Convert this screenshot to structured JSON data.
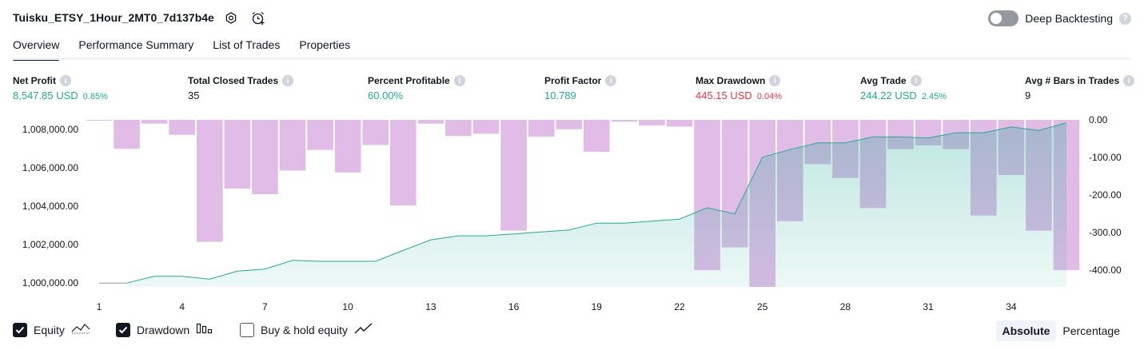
{
  "header": {
    "title": "Tuisku_ETSY_1Hour_2MT0_7d137b4e",
    "settings_icon": "gear-icon",
    "alert_icon": "alarm-add-icon",
    "deep_backtesting_label": "Deep Backtesting",
    "deep_backtesting_on": false,
    "help_glyph": "?"
  },
  "tabs": [
    {
      "label": "Overview",
      "active": true
    },
    {
      "label": "Performance Summary",
      "active": false
    },
    {
      "label": "List of Trades",
      "active": false
    },
    {
      "label": "Properties",
      "active": false
    }
  ],
  "stats": [
    {
      "label": "Net Profit",
      "value": "8,547.85 USD",
      "pct": "0.85%",
      "color": "green"
    },
    {
      "label": "Total Closed Trades",
      "value": "35",
      "pct": "",
      "color": "dark"
    },
    {
      "label": "Percent Profitable",
      "value": "60.00%",
      "pct": "",
      "color": "green"
    },
    {
      "label": "Profit Factor",
      "value": "10.789",
      "pct": "",
      "color": "green"
    },
    {
      "label": "Max Drawdown",
      "value": "445.15 USD",
      "pct": "0.04%",
      "color": "red"
    },
    {
      "label": "Avg Trade",
      "value": "244.22 USD",
      "pct": "2.45%",
      "color": "green"
    },
    {
      "label": "Avg # Bars in Trades",
      "value": "9",
      "pct": "",
      "color": "dark"
    }
  ],
  "info_glyph": "i",
  "chart_data": {
    "type": "line+bar",
    "x": [
      1,
      2,
      3,
      4,
      5,
      6,
      7,
      8,
      9,
      10,
      11,
      12,
      13,
      14,
      15,
      16,
      17,
      18,
      19,
      20,
      21,
      22,
      23,
      24,
      25,
      26,
      27,
      28,
      29,
      30,
      31,
      32,
      33,
      34,
      35,
      36
    ],
    "xticks": [
      "1",
      "4",
      "7",
      "10",
      "13",
      "16",
      "19",
      "22",
      "25",
      "28",
      "31",
      "34"
    ],
    "left_axis": {
      "ticks": [
        "1,000,000.00",
        "1,002,000.00",
        "1,004,000.00",
        "1,006,000.00",
        "1,008,000.00"
      ],
      "range": [
        999800,
        1008500
      ]
    },
    "right_axis": {
      "ticks": [
        "0.00",
        "-100.00",
        "-200.00",
        "-300.00",
        "-400.00"
      ],
      "range": [
        -445,
        0
      ]
    },
    "series": [
      {
        "name": "Equity",
        "axis": "left",
        "color": "#22ab94",
        "values": [
          1000000,
          1000000,
          1000350,
          1000350,
          1000200,
          1000620,
          1000730,
          1001180,
          1001130,
          1001130,
          1001130,
          1001700,
          1002250,
          1002460,
          1002460,
          1002560,
          1002660,
          1002760,
          1003120,
          1003120,
          1003220,
          1003330,
          1003920,
          1003600,
          1006550,
          1006950,
          1007300,
          1007300,
          1007610,
          1007610,
          1007560,
          1007830,
          1007830,
          1008130,
          1007950,
          1008350
        ]
      },
      {
        "name": "Drawdown",
        "axis": "right",
        "color": "#ce93d8",
        "values": [
          -2,
          -77,
          -10,
          -40,
          -325,
          -183,
          -198,
          -135,
          -80,
          -140,
          -67,
          -228,
          -10,
          -43,
          -37,
          -295,
          -45,
          -25,
          -85,
          -5,
          -15,
          -18,
          -400,
          -340,
          -445,
          -270,
          -118,
          -155,
          -235,
          -78,
          -68,
          -78,
          -255,
          -147,
          -295,
          -400
        ]
      }
    ],
    "baseline_segment_color": "#9598a1",
    "baseline_segment_until_x": 2
  },
  "legend": {
    "items": [
      {
        "label": "Equity",
        "checked": true,
        "icon": "equity-line-icon"
      },
      {
        "label": "Drawdown",
        "checked": true,
        "icon": "drawdown-bars-icon"
      },
      {
        "label": "Buy & hold equity",
        "checked": false,
        "icon": "buy-hold-line-icon"
      }
    ]
  },
  "mode": {
    "absolute_label": "Absolute",
    "percentage_label": "Percentage",
    "selected": "Absolute"
  }
}
